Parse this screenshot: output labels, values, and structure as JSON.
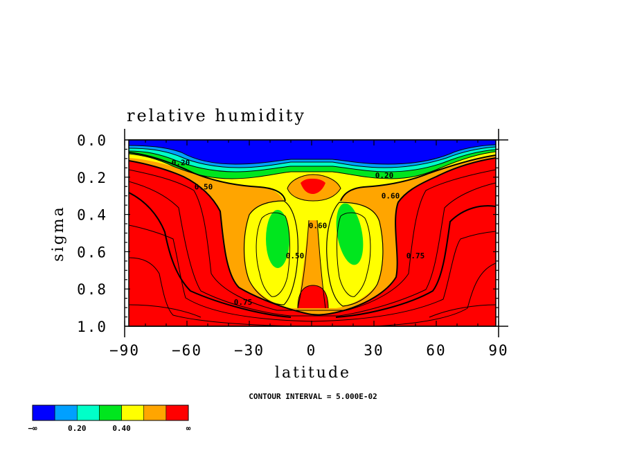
{
  "chart_data": {
    "type": "heatmap",
    "title": "relative humidity",
    "xlabel": "latitude",
    "ylabel": "sigma",
    "xlim": [
      -90,
      90
    ],
    "ylim": [
      0.0,
      1.0
    ],
    "y_inverted": true,
    "xticks": [
      "−90",
      "−60",
      "−30",
      "0",
      "30",
      "60",
      "90"
    ],
    "yticks": [
      "0.0",
      "0.2",
      "0.4",
      "0.6",
      "0.8",
      "1.0"
    ],
    "contour_interval_text": "CONTOUR INTERVAL = 5.000E-02",
    "contour_labels": [
      {
        "text": "0.20",
        "lat": -63,
        "sigma": 0.12
      },
      {
        "text": "0.20",
        "lat": 35,
        "sigma": 0.19
      },
      {
        "text": "0.50",
        "lat": -52,
        "sigma": 0.25
      },
      {
        "text": "0.60",
        "lat": 38,
        "sigma": 0.3
      },
      {
        "text": "0.60",
        "lat": 3,
        "sigma": 0.46
      },
      {
        "text": "0.50",
        "lat": -8,
        "sigma": 0.62
      },
      {
        "text": "0.75",
        "lat": 50,
        "sigma": 0.62
      },
      {
        "text": "0.75",
        "lat": -33,
        "sigma": 0.87
      }
    ],
    "colorbar": {
      "colors": [
        "#0000ff",
        "#00a0ff",
        "#00ffc8",
        "#00e61e",
        "#ffff00",
        "#ffa500",
        "#ff0000"
      ],
      "labels": [
        "−∞",
        "0.20",
        "0.40",
        "∞"
      ]
    }
  }
}
